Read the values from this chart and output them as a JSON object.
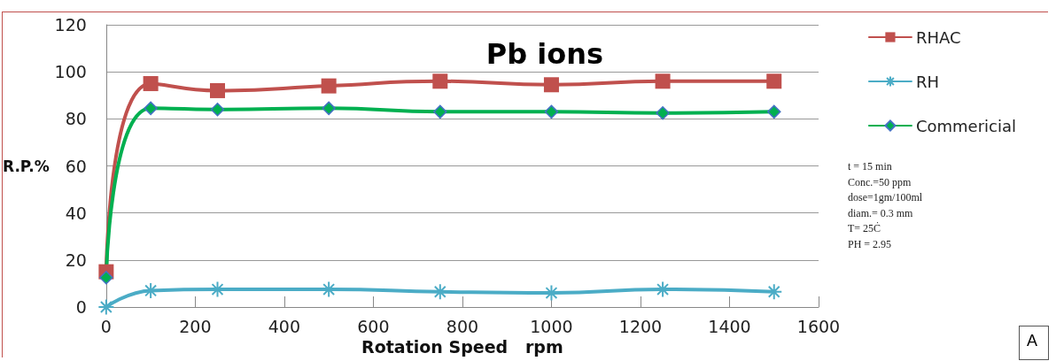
{
  "chart_data": {
    "type": "line",
    "title": "Pb ions",
    "xlabel": "Rotation Speed   rpm",
    "ylabel": "R.P.%",
    "x": [
      0,
      100,
      250,
      500,
      750,
      1000,
      1250,
      1500
    ],
    "series": [
      {
        "name": "RHAC",
        "color": "#c0504d",
        "marker": "square",
        "values": [
          15,
          95,
          92,
          94,
          96,
          94.5,
          96,
          96
        ]
      },
      {
        "name": "RH",
        "color": "#4bacc6",
        "marker": "cross",
        "values": [
          0,
          7,
          7.5,
          7.5,
          6.5,
          6,
          7.5,
          6.5
        ]
      },
      {
        "name": "Commericial",
        "color": "#00b050",
        "marker": "diamond",
        "values": [
          12.5,
          84.5,
          84,
          84.5,
          83,
          83,
          82.5,
          83
        ]
      }
    ],
    "xlim": [
      0,
      1600
    ],
    "xticks": [
      0,
      200,
      400,
      600,
      800,
      1000,
      1200,
      1400,
      1600
    ],
    "ylim": [
      0,
      120
    ],
    "yticks": [
      0,
      20,
      40,
      60,
      80,
      100,
      120
    ],
    "grid": "y",
    "legend": "right",
    "line_style": "solid",
    "annotations": [
      "t = 15 min",
      "Conc.=50 ppm",
      "dose=1gm/100ml",
      "diam.= 0.3 mm",
      "T= 25Ċ",
      "PH = 2.95",
      "A"
    ]
  }
}
